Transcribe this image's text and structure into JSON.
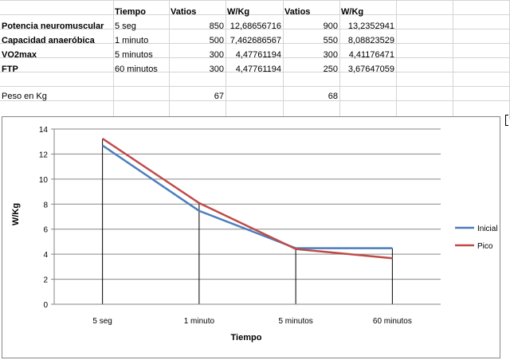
{
  "sheet": {
    "header": [
      "",
      "Tiempo",
      "Vatios",
      "W/Kg",
      "Vatios",
      "W/Kg"
    ],
    "rows": [
      [
        "Potencia neuromuscular",
        "5 seg",
        "850",
        "12,68656716",
        "900",
        "13,2352941"
      ],
      [
        "Capacidad anaeróbica",
        "1 minuto",
        "500",
        "7,462686567",
        "550",
        "8,08823529"
      ],
      [
        "VO2max",
        "5 minutos",
        "300",
        "4,47761194",
        "300",
        "4,41176471"
      ],
      [
        "FTP",
        "60 minutos",
        "300",
        "4,47761194",
        "250",
        "3,67647059"
      ]
    ],
    "peso_label": "Peso en Kg",
    "peso_inicial": "67",
    "peso_pico": "68"
  },
  "colors": {
    "inicial": "#4a7ebb",
    "pico": "#be4b48"
  },
  "chart_data": {
    "type": "line",
    "categories": [
      "5 seg",
      "1 minuto",
      "5 minutos",
      "60 minutos"
    ],
    "series": [
      {
        "name": "Inicial",
        "values": [
          12.68656716,
          7.462686567,
          4.47761194,
          4.47761194
        ]
      },
      {
        "name": "Pico",
        "values": [
          13.2352941,
          8.08823529,
          4.41176471,
          3.67647059
        ]
      }
    ],
    "xlabel": "Tiempo",
    "ylabel": "W/Kg",
    "ylim": [
      0,
      14
    ],
    "yticks": [
      "0",
      "2",
      "4",
      "6",
      "8",
      "10",
      "12",
      "14"
    ],
    "grid": true,
    "drop_lines": true,
    "legend": "right"
  }
}
